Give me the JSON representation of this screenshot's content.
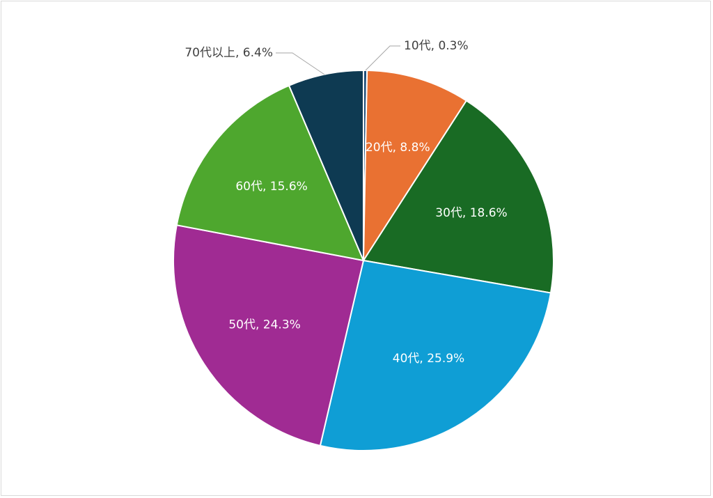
{
  "chart_data": {
    "type": "pie",
    "start_angle_deg": 0,
    "direction": "clockwise",
    "legend": "none",
    "slices": [
      {
        "label": "10代",
        "value": 0.3,
        "display": "10代, 0.3%",
        "color": "#1f4e79",
        "label_pos": "outside"
      },
      {
        "label": "20代",
        "value": 8.8,
        "display": "20代, 8.8%",
        "color": "#e97132",
        "label_pos": "inside"
      },
      {
        "label": "30代",
        "value": 18.6,
        "display": "30代, 18.6%",
        "color": "#196b24",
        "label_pos": "inside"
      },
      {
        "label": "40代",
        "value": 25.9,
        "display": "40代, 25.9%",
        "color": "#0f9ed5",
        "label_pos": "inside"
      },
      {
        "label": "50代",
        "value": 24.3,
        "display": "50代, 24.3%",
        "color": "#a02b93",
        "label_pos": "inside"
      },
      {
        "label": "60代",
        "value": 15.6,
        "display": "60代, 15.6%",
        "color": "#4ea72e",
        "label_pos": "inside"
      },
      {
        "label": "70代以上",
        "value": 6.4,
        "display": "70代以上, 6.4%",
        "color": "#0e3a52",
        "label_pos": "outside"
      }
    ]
  }
}
